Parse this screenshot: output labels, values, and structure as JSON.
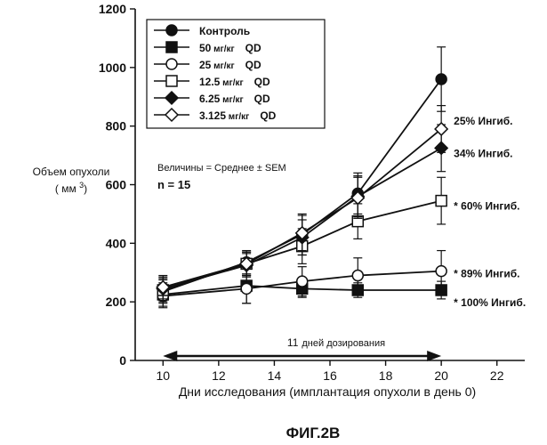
{
  "figure_label": "ФИГ.2В",
  "chart_data": {
    "type": "line",
    "xlabel": "Дни исследования (имплантация опухоли в день 0)",
    "ylabel_line1": "Объем опухоли",
    "ylabel_line2": "( мм ",
    "ylabel_sup": "3",
    "ylabel_close": ")",
    "xlim": [
      9,
      23
    ],
    "ylim": [
      0,
      1200
    ],
    "xticks": [
      10,
      12,
      14,
      16,
      18,
      20,
      22
    ],
    "yticks": [
      0,
      200,
      400,
      600,
      800,
      1000,
      1200
    ],
    "x": [
      10,
      13,
      15,
      17,
      20
    ],
    "series": [
      {
        "name": "Контроль",
        "label_suffix": "",
        "marker": "circle-filled",
        "values": [
          235,
          335,
          430,
          570,
          960
        ],
        "err": [
          40,
          40,
          70,
          70,
          110
        ]
      },
      {
        "name": "50",
        "label_suffix": "QD",
        "marker": "square-filled",
        "values": [
          225,
          255,
          245,
          240,
          240
        ],
        "err": [
          40,
          60,
          30,
          25,
          30
        ]
      },
      {
        "name": "25",
        "label_suffix": "QD",
        "marker": "circle-open",
        "values": [
          220,
          245,
          270,
          290,
          305
        ],
        "err": [
          40,
          50,
          50,
          60,
          70
        ]
      },
      {
        "name": "12.5",
        "label_suffix": "QD",
        "marker": "square-open",
        "values": [
          240,
          330,
          390,
          475,
          545
        ],
        "err": [
          40,
          40,
          60,
          60,
          80
        ]
      },
      {
        "name": "6.25",
        "label_suffix": "QD",
        "marker": "diamond-filled",
        "values": [
          245,
          325,
          420,
          560,
          725
        ],
        "err": [
          40,
          40,
          60,
          70,
          80
        ]
      },
      {
        "name": "3.125",
        "label_suffix": "QD",
        "marker": "diamond-open",
        "values": [
          250,
          330,
          435,
          555,
          790
        ],
        "err": [
          40,
          40,
          60,
          70,
          80
        ]
      }
    ],
    "legend_unit": "мг/кг",
    "annotations": {
      "stats_text": "Величины = Среднее ± SEM",
      "n_text": "n = 15",
      "dosing_days": "11",
      "dosing_text": "дней дозирования",
      "dosing_range": [
        10,
        20
      ],
      "inhibition": [
        {
          "text": "25% Ингиб.",
          "y": 820
        },
        {
          "text": "34% Ингиб.",
          "y": 710
        },
        {
          "text": "* 60% Ингиб.",
          "y": 530
        },
        {
          "text": "* 89% Ингиб.",
          "y": 300
        },
        {
          "text": "* 100% Ингиб.",
          "y": 200
        }
      ]
    }
  }
}
